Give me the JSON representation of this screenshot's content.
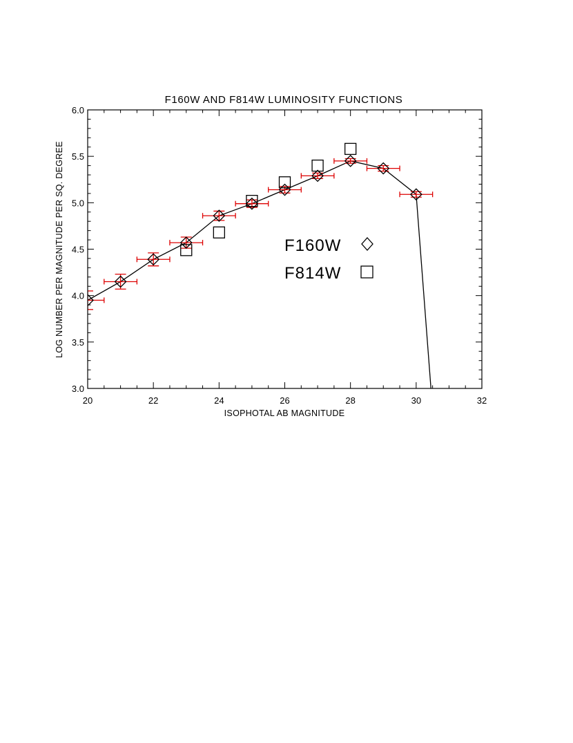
{
  "chart_data": {
    "type": "scatter",
    "title": "F160W AND F814W LUMINOSITY FUNCTIONS",
    "xlabel": "ISOPHOTAL AB MAGNITUDE",
    "ylabel": "LOG NUMBER PER MAGNITUDE PER SQ. DEGREE",
    "xlim": [
      20,
      32
    ],
    "ylim": [
      3.0,
      6.0
    ],
    "x_ticks": [
      "20",
      "22",
      "24",
      "26",
      "28",
      "30",
      "32"
    ],
    "y_ticks": [
      "3.0",
      "3.5",
      "4.0",
      "4.5",
      "5.0",
      "5.5",
      "6.0"
    ],
    "grid": false,
    "legend_position": "center-right",
    "colors": {
      "axis": "#000000",
      "error_bars": "#dd0000"
    },
    "series": [
      {
        "name": "F160W",
        "marker": "diamond",
        "line": true,
        "x": [
          20,
          21,
          22,
          23,
          24,
          25,
          26,
          27,
          28,
          29,
          30
        ],
        "y": [
          3.95,
          4.15,
          4.39,
          4.57,
          4.86,
          4.99,
          5.14,
          5.29,
          5.45,
          5.37,
          5.09
        ],
        "x_err": [
          0.5,
          0.5,
          0.5,
          0.5,
          0.5,
          0.5,
          0.5,
          0.5,
          0.5,
          0.5,
          0.5
        ],
        "y_err": [
          0.1,
          0.08,
          0.07,
          0.06,
          0.05,
          0.04,
          0.035,
          0.03,
          0.025,
          0.03,
          0.03
        ],
        "line_tail": {
          "x": 30.45,
          "y": 3.0
        }
      },
      {
        "name": "F814W",
        "marker": "square",
        "line": false,
        "x": [
          23,
          24,
          25,
          26,
          27,
          28
        ],
        "y": [
          4.49,
          4.68,
          5.02,
          5.22,
          5.4,
          5.58
        ]
      }
    ]
  }
}
